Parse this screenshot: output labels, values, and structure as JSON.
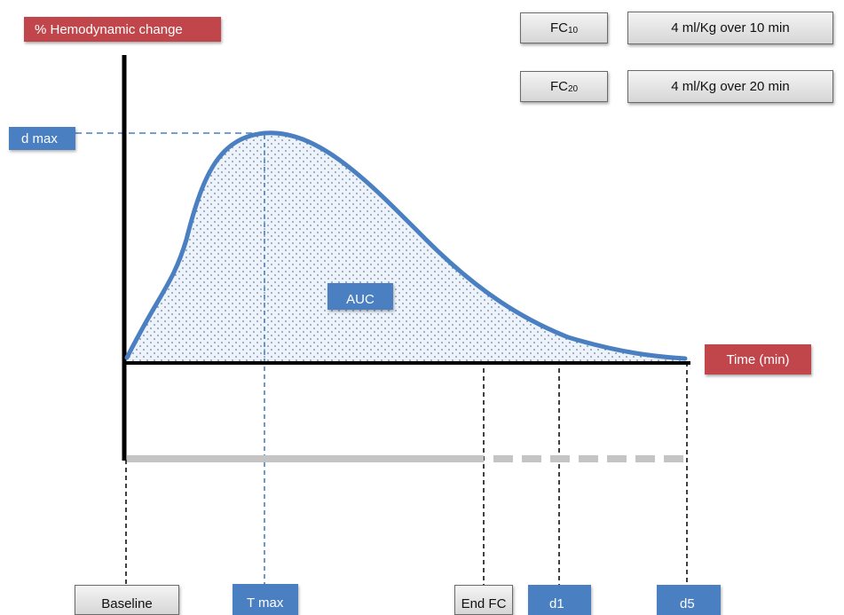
{
  "diagram": {
    "y_axis_label": "% Hemodynamic change",
    "x_axis_label": "Time (min)",
    "peak_label": "d max",
    "area_label": "AUC"
  },
  "legend": {
    "fc10": {
      "name": "FC",
      "subscript": "10",
      "description": "4 ml/Kg over 10 min"
    },
    "fc20": {
      "name": "FC",
      "subscript": "20",
      "description": "4 ml/Kg over 20 min"
    }
  },
  "timepoints": {
    "baseline": "Baseline",
    "t_max": "T max",
    "end_fc": "End FC",
    "d1": "d1",
    "d5": "d5"
  },
  "colors": {
    "curve": "#4a7fc1",
    "label_red": "#c0464b",
    "label_blue": "#4a7fc1",
    "timeline_bar": "#c4c4c4"
  }
}
